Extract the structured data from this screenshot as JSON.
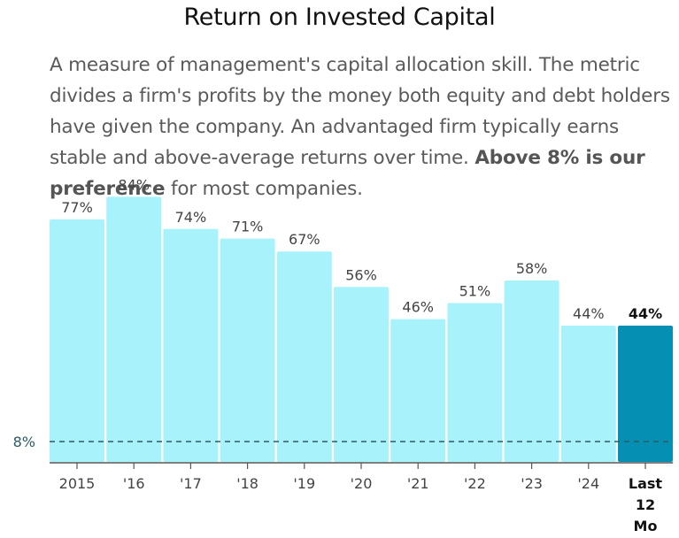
{
  "title": "Return on Invested Capital",
  "description": {
    "text": "A measure of management's capital allocation skill. The metric divides a firm's profits by the money both equity and debt holders have given the company. An advantaged firm typically earns stable and above-average returns over time. ",
    "bold": "Above 8% is our preference",
    "tail": " for most companies."
  },
  "chart_data": {
    "type": "bar",
    "categories": [
      "2015",
      "'16",
      "'17",
      "'18",
      "'19",
      "'20",
      "'21",
      "'22",
      "'23",
      "'24",
      "Last 12 Mo"
    ],
    "values": [
      77,
      84,
      74,
      71,
      67,
      56,
      46,
      51,
      58,
      44,
      44
    ],
    "value_labels": [
      "77%",
      "84%",
      "74%",
      "71%",
      "67%",
      "56%",
      "46%",
      "51%",
      "58%",
      "44%",
      "44%"
    ],
    "highlight_index": 10,
    "reference_line": {
      "value": 8,
      "label": "8%"
    },
    "colors": {
      "bar": "#a8f2fc",
      "highlight": "#0590b3",
      "reference": "#2d5b63",
      "axis": "#555555"
    },
    "grid": false
  }
}
